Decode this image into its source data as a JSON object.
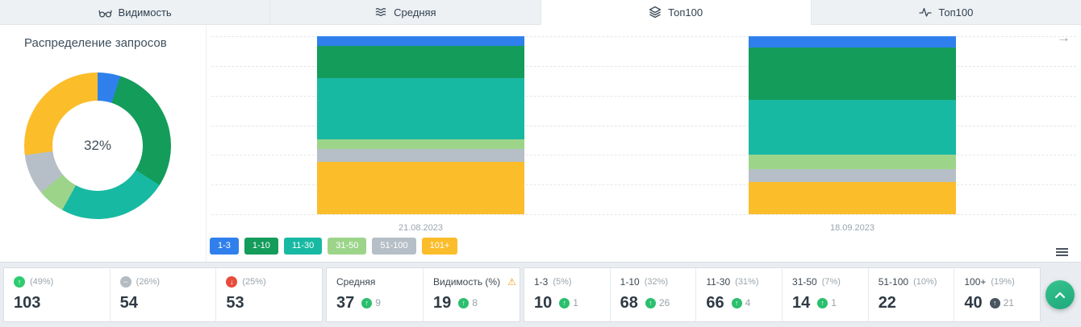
{
  "tabs": [
    {
      "label": "Видимость",
      "active": false
    },
    {
      "label": "Средняя",
      "active": false
    },
    {
      "label": "Топ100",
      "active": true
    },
    {
      "label": "Топ100",
      "active": false
    }
  ],
  "panel": {
    "title": "Распределение запросов"
  },
  "donut": {
    "center_label": "32%",
    "segments": [
      {
        "name": "1-3",
        "value": 5,
        "color": "#2f80ed"
      },
      {
        "name": "1-10",
        "value": 29,
        "color": "#149c5b"
      },
      {
        "name": "11-30",
        "value": 24,
        "color": "#18b9a2"
      },
      {
        "name": "31-50",
        "value": 6,
        "color": "#9cd58a"
      },
      {
        "name": "51-100",
        "value": 9,
        "color": "#b6bfc7"
      },
      {
        "name": "101+",
        "value": 27,
        "color": "#fcbd2b"
      }
    ]
  },
  "chart_data": {
    "type": "bar",
    "stacked": true,
    "categories": [
      "21.08.2023",
      "18.09.2023"
    ],
    "series": [
      {
        "name": "1-3",
        "color": "#2f80ed",
        "values": [
          5.5,
          6.3
        ]
      },
      {
        "name": "1-10",
        "color": "#149c5b",
        "values": [
          18.2,
          29.4
        ]
      },
      {
        "name": "11-30",
        "color": "#18b9a2",
        "values": [
          34.1,
          30.8
        ]
      },
      {
        "name": "31-50",
        "color": "#9cd58a",
        "values": [
          5.5,
          8.1
        ]
      },
      {
        "name": "51-100",
        "color": "#b6bfc7",
        "values": [
          7.3,
          7.2
        ]
      },
      {
        "name": "101+",
        "color": "#fcbd2b",
        "values": [
          29.4,
          18.2
        ]
      }
    ],
    "ylim": [
      0,
      100
    ],
    "grid": "horizontal-dashed",
    "legend_position": "bottom"
  },
  "icons": {
    "up_arrow": "↑",
    "warning": "⚠",
    "next_period": "→"
  },
  "cards": {
    "summary": [
      {
        "label": "(49%)",
        "value": "103",
        "trend": "up",
        "icon_glyph": "↑"
      },
      {
        "label": "(26%)",
        "value": "54",
        "trend": "flat",
        "icon_glyph": "−"
      },
      {
        "label": "(25%)",
        "value": "53",
        "trend": "down",
        "icon_glyph": "↓"
      }
    ],
    "metrics": [
      {
        "label": "Средняя",
        "value": "37",
        "delta": "9"
      },
      {
        "label": "Видимость (%)",
        "value": "19",
        "delta": "8",
        "warning": true
      }
    ],
    "ranges": [
      {
        "label": "1-3",
        "percent": "(5%)",
        "value": "10",
        "delta": "1",
        "delta_style": "green"
      },
      {
        "label": "1-10",
        "percent": "(32%)",
        "value": "68",
        "delta": "26",
        "delta_style": "green"
      },
      {
        "label": "11-30",
        "percent": "(31%)",
        "value": "66",
        "delta": "4",
        "delta_style": "green"
      },
      {
        "label": "31-50",
        "percent": "(7%)",
        "value": "14",
        "delta": "1",
        "delta_style": "green"
      },
      {
        "label": "51-100",
        "percent": "(10%)",
        "value": "22",
        "delta": "",
        "delta_style": "none"
      },
      {
        "label": "100+",
        "percent": "(19%)",
        "value": "40",
        "delta": "21",
        "delta_style": "dark"
      }
    ]
  }
}
